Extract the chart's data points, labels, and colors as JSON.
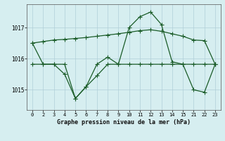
{
  "title": "Graphe pression niveau de la mer (hPa)",
  "background_color": "#d6eef0",
  "grid_color": "#b0cfd8",
  "line_color": "#1a5c28",
  "xtick_labels": [
    "0",
    "2",
    "3",
    "4",
    "5",
    "6",
    "7",
    "8",
    "9",
    "10",
    "11",
    "12",
    "13",
    "14",
    "15",
    "21",
    "22",
    "23"
  ],
  "xtick_positions": [
    0,
    1,
    2,
    3,
    4,
    5,
    6,
    7,
    8,
    9,
    10,
    11,
    12,
    13,
    14,
    15,
    16,
    17
  ],
  "yticks": [
    1015,
    1016,
    1017
  ],
  "ylim": [
    1014.35,
    1017.75
  ],
  "xlim": [
    -0.5,
    17.5
  ],
  "line1_xi": [
    0,
    1,
    2,
    3,
    4,
    5,
    6,
    7,
    8,
    9,
    10,
    11,
    12,
    13,
    14,
    15,
    16,
    17
  ],
  "line1_y": [
    1016.5,
    1016.55,
    1016.6,
    1016.62,
    1016.65,
    1016.68,
    1016.72,
    1016.76,
    1016.8,
    1016.85,
    1016.9,
    1016.93,
    1016.88,
    1016.8,
    1016.72,
    1016.6,
    1016.58,
    1015.82
  ],
  "line2_xi": [
    0,
    1,
    2,
    3,
    4,
    5,
    6,
    7,
    8,
    9,
    10,
    11,
    12,
    13,
    14,
    15,
    16,
    17
  ],
  "line2_y": [
    1015.82,
    1015.82,
    1015.82,
    1015.5,
    1014.72,
    1015.1,
    1015.45,
    1015.82,
    1015.82,
    1015.82,
    1015.82,
    1015.82,
    1015.82,
    1015.82,
    1015.82,
    1015.82,
    1015.82,
    1015.82
  ],
  "line3_xi": [
    0,
    1,
    2,
    3,
    4,
    5,
    6,
    7,
    8,
    9,
    10,
    11,
    12,
    13,
    14,
    15,
    16,
    17
  ],
  "line3_y": [
    1016.5,
    1015.82,
    1015.82,
    1015.82,
    1014.72,
    1015.1,
    1015.82,
    1016.05,
    1015.82,
    1017.0,
    1017.35,
    1017.5,
    1017.1,
    1015.9,
    1015.82,
    1015.0,
    1014.92,
    1015.82
  ]
}
